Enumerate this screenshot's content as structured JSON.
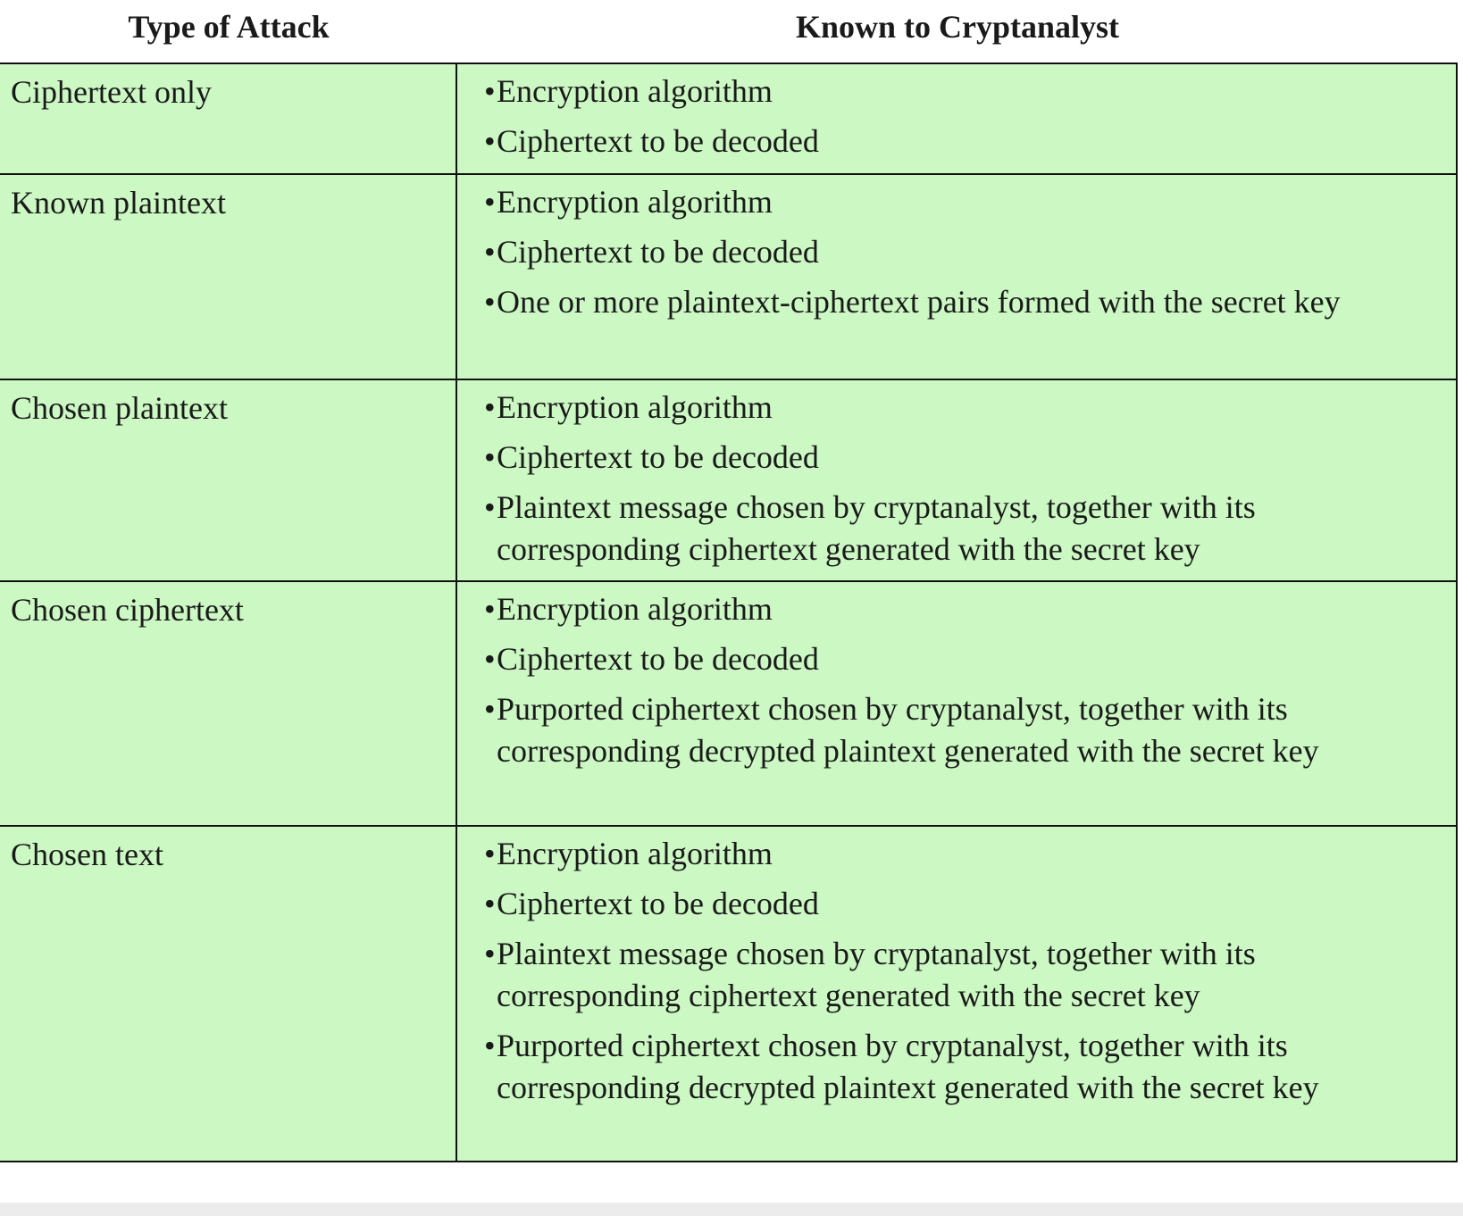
{
  "headers": {
    "type_of_attack": "Type of Attack",
    "known_to_cryptanalyst": "Known to Cryptanalyst"
  },
  "bullet_symbol": "•",
  "rows": [
    {
      "attack": "Ciphertext only",
      "known": [
        "Encryption algorithm",
        "Ciphertext to be decoded"
      ]
    },
    {
      "attack": "Known plaintext",
      "known": [
        "Encryption algorithm",
        "Ciphertext to be decoded",
        "One or more plaintext-ciphertext pairs formed with the secret key"
      ]
    },
    {
      "attack": "Chosen plaintext",
      "known": [
        "Encryption algorithm",
        "Ciphertext to be decoded",
        "Plaintext message chosen by cryptanalyst, together with its corresponding ciphertext generated with the secret key"
      ]
    },
    {
      "attack": "Chosen ciphertext",
      "known": [
        "Encryption algorithm",
        "Ciphertext to be decoded",
        "Purported ciphertext chosen by cryptanalyst, together with its corresponding decrypted plaintext generated with the secret key"
      ]
    },
    {
      "attack": "Chosen text",
      "known": [
        "Encryption algorithm",
        "Ciphertext to be decoded",
        "Plaintext message chosen by cryptanalyst, together with its corresponding ciphertext generated with the secret key",
        "Purported ciphertext chosen by cryptanalyst, together with its corresponding decrypted plaintext generated with the secret key"
      ]
    }
  ],
  "colors": {
    "cell_background": "#ccf8c4",
    "border": "#111111",
    "text": "#1a1a1a"
  }
}
